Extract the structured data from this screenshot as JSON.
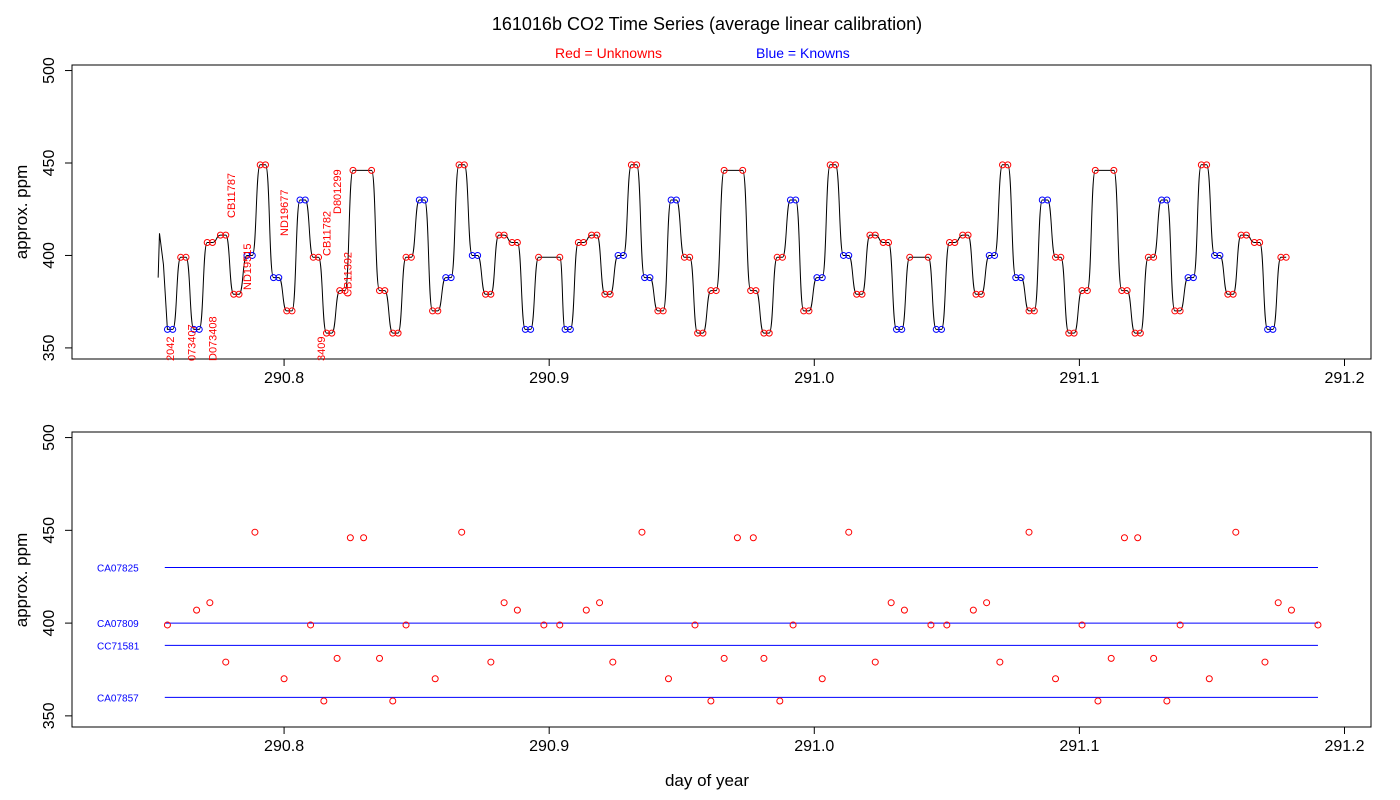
{
  "title": "161016b   CO2 Time Series (average linear calibration)",
  "legend": {
    "red_label": "Red = Unknowns",
    "blue_label": "Blue = Knowns",
    "red_color": "#ff0000",
    "blue_color": "#0000ff"
  },
  "xlabel": "day of year",
  "ylabel": "approx. ppm",
  "chart_data": [
    {
      "type": "line",
      "panel": "top",
      "xlabel": "",
      "ylabel": "approx. ppm",
      "xlim": [
        290.72,
        291.21
      ],
      "ylim": [
        344,
        503
      ],
      "x_ticks": [
        "290.8",
        "290.9",
        "291.0",
        "291.1",
        "291.2"
      ],
      "y_ticks": [
        "350",
        "400",
        "450",
        "500"
      ],
      "segments": [
        {
          "x0": 290.756,
          "x1": 290.758,
          "y": 360,
          "color": "#0000ff"
        },
        {
          "x0": 290.761,
          "x1": 290.763,
          "y": 399,
          "color": "#ff0000"
        },
        {
          "x0": 290.766,
          "x1": 290.768,
          "y": 360,
          "color": "#0000ff"
        },
        {
          "x0": 290.771,
          "x1": 290.773,
          "y": 407,
          "color": "#ff0000"
        },
        {
          "x0": 290.776,
          "x1": 290.778,
          "y": 411,
          "color": "#ff0000"
        },
        {
          "x0": 290.781,
          "x1": 290.783,
          "y": 379,
          "color": "#ff0000"
        },
        {
          "x0": 290.786,
          "x1": 290.788,
          "y": 400,
          "color": "#0000ff"
        },
        {
          "x0": 290.791,
          "x1": 290.793,
          "y": 449,
          "color": "#ff0000"
        },
        {
          "x0": 290.796,
          "x1": 290.798,
          "y": 388,
          "color": "#0000ff"
        },
        {
          "x0": 290.801,
          "x1": 290.803,
          "y": 370,
          "color": "#ff0000"
        },
        {
          "x0": 290.806,
          "x1": 290.808,
          "y": 430,
          "color": "#0000ff"
        },
        {
          "x0": 290.811,
          "x1": 290.813,
          "y": 399,
          "color": "#ff0000"
        },
        {
          "x0": 290.816,
          "x1": 290.818,
          "y": 358,
          "color": "#ff0000"
        },
        {
          "x0": 290.821,
          "x1": 290.823,
          "y": 381,
          "color": "#ff0000"
        },
        {
          "x0": 290.826,
          "x1": 290.833,
          "y": 446,
          "color": "#ff0000"
        },
        {
          "x0": 290.836,
          "x1": 290.838,
          "y": 381,
          "color": "#ff0000"
        },
        {
          "x0": 290.841,
          "x1": 290.843,
          "y": 358,
          "color": "#ff0000"
        },
        {
          "x0": 290.846,
          "x1": 290.848,
          "y": 399,
          "color": "#ff0000"
        },
        {
          "x0": 290.851,
          "x1": 290.853,
          "y": 430,
          "color": "#0000ff"
        },
        {
          "x0": 290.856,
          "x1": 290.858,
          "y": 370,
          "color": "#ff0000"
        },
        {
          "x0": 290.861,
          "x1": 290.863,
          "y": 388,
          "color": "#0000ff"
        },
        {
          "x0": 290.866,
          "x1": 290.868,
          "y": 449,
          "color": "#ff0000"
        },
        {
          "x0": 290.871,
          "x1": 290.873,
          "y": 400,
          "color": "#0000ff"
        },
        {
          "x0": 290.876,
          "x1": 290.878,
          "y": 379,
          "color": "#ff0000"
        },
        {
          "x0": 290.881,
          "x1": 290.883,
          "y": 411,
          "color": "#ff0000"
        },
        {
          "x0": 290.886,
          "x1": 290.888,
          "y": 407,
          "color": "#ff0000"
        },
        {
          "x0": 290.891,
          "x1": 290.893,
          "y": 360,
          "color": "#0000ff"
        },
        {
          "x0": 290.896,
          "x1": 290.904,
          "y": 399,
          "color": "#ff0000"
        },
        {
          "x0": 290.906,
          "x1": 290.908,
          "y": 360,
          "color": "#0000ff"
        },
        {
          "x0": 290.911,
          "x1": 290.913,
          "y": 407,
          "color": "#ff0000"
        },
        {
          "x0": 290.916,
          "x1": 290.918,
          "y": 411,
          "color": "#ff0000"
        },
        {
          "x0": 290.921,
          "x1": 290.923,
          "y": 379,
          "color": "#ff0000"
        },
        {
          "x0": 290.926,
          "x1": 290.928,
          "y": 400,
          "color": "#0000ff"
        },
        {
          "x0": 290.931,
          "x1": 290.933,
          "y": 449,
          "color": "#ff0000"
        },
        {
          "x0": 290.936,
          "x1": 290.938,
          "y": 388,
          "color": "#0000ff"
        },
        {
          "x0": 290.941,
          "x1": 290.943,
          "y": 370,
          "color": "#ff0000"
        },
        {
          "x0": 290.946,
          "x1": 290.948,
          "y": 430,
          "color": "#0000ff"
        },
        {
          "x0": 290.951,
          "x1": 290.953,
          "y": 399,
          "color": "#ff0000"
        },
        {
          "x0": 290.956,
          "x1": 290.958,
          "y": 358,
          "color": "#ff0000"
        },
        {
          "x0": 290.961,
          "x1": 290.963,
          "y": 381,
          "color": "#ff0000"
        },
        {
          "x0": 290.966,
          "x1": 290.973,
          "y": 446,
          "color": "#ff0000"
        },
        {
          "x0": 290.976,
          "x1": 290.978,
          "y": 381,
          "color": "#ff0000"
        },
        {
          "x0": 290.981,
          "x1": 290.983,
          "y": 358,
          "color": "#ff0000"
        },
        {
          "x0": 290.986,
          "x1": 290.988,
          "y": 399,
          "color": "#ff0000"
        },
        {
          "x0": 290.991,
          "x1": 290.993,
          "y": 430,
          "color": "#0000ff"
        },
        {
          "x0": 290.996,
          "x1": 290.998,
          "y": 370,
          "color": "#ff0000"
        },
        {
          "x0": 291.001,
          "x1": 291.003,
          "y": 388,
          "color": "#0000ff"
        },
        {
          "x0": 291.006,
          "x1": 291.008,
          "y": 449,
          "color": "#ff0000"
        },
        {
          "x0": 291.011,
          "x1": 291.013,
          "y": 400,
          "color": "#0000ff"
        },
        {
          "x0": 291.016,
          "x1": 291.018,
          "y": 379,
          "color": "#ff0000"
        },
        {
          "x0": 291.021,
          "x1": 291.023,
          "y": 411,
          "color": "#ff0000"
        },
        {
          "x0": 291.026,
          "x1": 291.028,
          "y": 407,
          "color": "#ff0000"
        },
        {
          "x0": 291.031,
          "x1": 291.033,
          "y": 360,
          "color": "#0000ff"
        },
        {
          "x0": 291.036,
          "x1": 291.043,
          "y": 399,
          "color": "#ff0000"
        },
        {
          "x0": 291.046,
          "x1": 291.048,
          "y": 360,
          "color": "#0000ff"
        },
        {
          "x0": 291.051,
          "x1": 291.053,
          "y": 407,
          "color": "#ff0000"
        },
        {
          "x0": 291.056,
          "x1": 291.058,
          "y": 411,
          "color": "#ff0000"
        },
        {
          "x0": 291.061,
          "x1": 291.063,
          "y": 379,
          "color": "#ff0000"
        },
        {
          "x0": 291.066,
          "x1": 291.068,
          "y": 400,
          "color": "#0000ff"
        },
        {
          "x0": 291.071,
          "x1": 291.073,
          "y": 449,
          "color": "#ff0000"
        },
        {
          "x0": 291.076,
          "x1": 291.078,
          "y": 388,
          "color": "#0000ff"
        },
        {
          "x0": 291.081,
          "x1": 291.083,
          "y": 370,
          "color": "#ff0000"
        },
        {
          "x0": 291.086,
          "x1": 291.088,
          "y": 430,
          "color": "#0000ff"
        },
        {
          "x0": 291.091,
          "x1": 291.093,
          "y": 399,
          "color": "#ff0000"
        },
        {
          "x0": 291.096,
          "x1": 291.098,
          "y": 358,
          "color": "#ff0000"
        },
        {
          "x0": 291.101,
          "x1": 291.103,
          "y": 381,
          "color": "#ff0000"
        },
        {
          "x0": 291.106,
          "x1": 291.113,
          "y": 446,
          "color": "#ff0000"
        },
        {
          "x0": 291.116,
          "x1": 291.118,
          "y": 381,
          "color": "#ff0000"
        },
        {
          "x0": 291.121,
          "x1": 291.123,
          "y": 358,
          "color": "#ff0000"
        },
        {
          "x0": 291.126,
          "x1": 291.128,
          "y": 399,
          "color": "#ff0000"
        },
        {
          "x0": 291.131,
          "x1": 291.133,
          "y": 430,
          "color": "#0000ff"
        },
        {
          "x0": 291.136,
          "x1": 291.138,
          "y": 370,
          "color": "#ff0000"
        },
        {
          "x0": 291.141,
          "x1": 291.143,
          "y": 388,
          "color": "#0000ff"
        },
        {
          "x0": 291.146,
          "x1": 291.148,
          "y": 449,
          "color": "#ff0000"
        },
        {
          "x0": 291.151,
          "x1": 291.153,
          "y": 400,
          "color": "#0000ff"
        },
        {
          "x0": 291.156,
          "x1": 291.158,
          "y": 379,
          "color": "#ff0000"
        },
        {
          "x0": 291.161,
          "x1": 291.163,
          "y": 411,
          "color": "#ff0000"
        },
        {
          "x0": 291.166,
          "x1": 291.168,
          "y": 407,
          "color": "#ff0000"
        },
        {
          "x0": 291.171,
          "x1": 291.173,
          "y": 360,
          "color": "#0000ff"
        },
        {
          "x0": 291.176,
          "x1": 291.178,
          "y": 399,
          "color": "#ff0000"
        }
      ],
      "sample_labels": [
        {
          "text": "2042",
          "x": 290.757
        },
        {
          "text": "073407",
          "x": 290.765
        },
        {
          "text": "D073408",
          "x": 290.773
        },
        {
          "text": "CB11787",
          "x": 290.78
        },
        {
          "text": "ND19515",
          "x": 290.786
        },
        {
          "text": "ND19677",
          "x": 290.8
        },
        {
          "text": "3409",
          "x": 290.814
        },
        {
          "text": "CB11782",
          "x": 290.816
        },
        {
          "text": "D801299",
          "x": 290.82
        },
        {
          "text": "CB11392",
          "x": 290.824
        }
      ]
    },
    {
      "type": "scatter",
      "panel": "bottom",
      "xlabel": "day of year",
      "ylabel": "approx. ppm",
      "xlim": [
        290.72,
        291.21
      ],
      "ylim": [
        344,
        503
      ],
      "x_ticks": [
        "290.8",
        "290.9",
        "291.0",
        "291.1",
        "291.2"
      ],
      "y_ticks": [
        "350",
        "400",
        "450",
        "500"
      ],
      "unknowns": [
        {
          "x": 290.756,
          "y": 399
        },
        {
          "x": 290.767,
          "y": 407
        },
        {
          "x": 290.772,
          "y": 411
        },
        {
          "x": 290.778,
          "y": 379
        },
        {
          "x": 290.789,
          "y": 449
        },
        {
          "x": 290.8,
          "y": 370
        },
        {
          "x": 290.81,
          "y": 399
        },
        {
          "x": 290.815,
          "y": 358
        },
        {
          "x": 290.82,
          "y": 381
        },
        {
          "x": 290.825,
          "y": 446
        },
        {
          "x": 290.83,
          "y": 446
        },
        {
          "x": 290.836,
          "y": 381
        },
        {
          "x": 290.841,
          "y": 358
        },
        {
          "x": 290.846,
          "y": 399
        },
        {
          "x": 290.857,
          "y": 370
        },
        {
          "x": 290.867,
          "y": 449
        },
        {
          "x": 290.878,
          "y": 379
        },
        {
          "x": 290.883,
          "y": 411
        },
        {
          "x": 290.888,
          "y": 407
        },
        {
          "x": 290.898,
          "y": 399
        },
        {
          "x": 290.904,
          "y": 399
        },
        {
          "x": 290.914,
          "y": 407
        },
        {
          "x": 290.919,
          "y": 411
        },
        {
          "x": 290.924,
          "y": 379
        },
        {
          "x": 290.935,
          "y": 449
        },
        {
          "x": 290.945,
          "y": 370
        },
        {
          "x": 290.955,
          "y": 399
        },
        {
          "x": 290.961,
          "y": 358
        },
        {
          "x": 290.966,
          "y": 381
        },
        {
          "x": 290.971,
          "y": 446
        },
        {
          "x": 290.977,
          "y": 446
        },
        {
          "x": 290.981,
          "y": 381
        },
        {
          "x": 290.987,
          "y": 358
        },
        {
          "x": 290.992,
          "y": 399
        },
        {
          "x": 291.003,
          "y": 370
        },
        {
          "x": 291.013,
          "y": 449
        },
        {
          "x": 291.023,
          "y": 379
        },
        {
          "x": 291.029,
          "y": 411
        },
        {
          "x": 291.034,
          "y": 407
        },
        {
          "x": 291.044,
          "y": 399
        },
        {
          "x": 291.05,
          "y": 399
        },
        {
          "x": 291.06,
          "y": 407
        },
        {
          "x": 291.065,
          "y": 411
        },
        {
          "x": 291.07,
          "y": 379
        },
        {
          "x": 291.081,
          "y": 449
        },
        {
          "x": 291.091,
          "y": 370
        },
        {
          "x": 291.101,
          "y": 399
        },
        {
          "x": 291.107,
          "y": 358
        },
        {
          "x": 291.112,
          "y": 381
        },
        {
          "x": 291.117,
          "y": 446
        },
        {
          "x": 291.122,
          "y": 446
        },
        {
          "x": 291.128,
          "y": 381
        },
        {
          "x": 291.133,
          "y": 358
        },
        {
          "x": 291.138,
          "y": 399
        },
        {
          "x": 291.149,
          "y": 370
        },
        {
          "x": 291.159,
          "y": 449
        },
        {
          "x": 291.17,
          "y": 379
        },
        {
          "x": 291.175,
          "y": 411
        },
        {
          "x": 291.18,
          "y": 407
        },
        {
          "x": 291.19,
          "y": 399
        }
      ],
      "standards": [
        {
          "name": "CA07825",
          "y": 430
        },
        {
          "name": "CA07809",
          "y": 400
        },
        {
          "name": "CC71581",
          "y": 388
        },
        {
          "name": "CA07857",
          "y": 360
        }
      ],
      "standards_xrange": [
        290.755,
        291.19
      ]
    }
  ]
}
